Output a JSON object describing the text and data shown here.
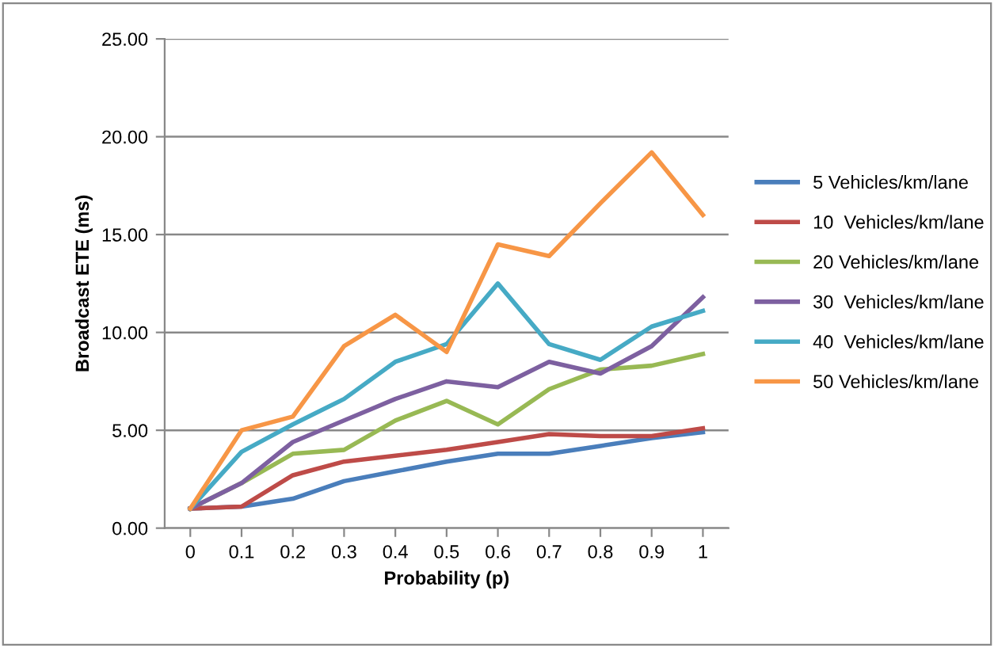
{
  "chart_data": {
    "type": "line",
    "xlabel": "Probability (p)",
    "ylabel": "Broadcast ETE (ms)",
    "categories": [
      "0",
      "0.1",
      "0.2",
      "0.3",
      "0.4",
      "0.5",
      "0.6",
      "0.7",
      "0.8",
      "0.9",
      "1"
    ],
    "ylim": [
      0,
      25
    ],
    "yticks": [
      {
        "value": 0,
        "label": "0.00"
      },
      {
        "value": 5,
        "label": "5.00"
      },
      {
        "value": 10,
        "label": "10.00"
      },
      {
        "value": 15,
        "label": "15.00"
      },
      {
        "value": 20,
        "label": "20.00"
      },
      {
        "value": 25,
        "label": "25.00"
      }
    ],
    "grid": "y",
    "legend": "right",
    "marker": "none",
    "line_style": "solid",
    "series": [
      {
        "name": "5 Vehicles/km/lane",
        "color": "#4a7ebb",
        "values": [
          1,
          1.1,
          1.5,
          2.4,
          2.9,
          3.4,
          3.8,
          3.8,
          4.2,
          4.6,
          4.9
        ]
      },
      {
        "name": "10  Vehicles/km/lane",
        "color": "#be4b48",
        "values": [
          1,
          1.1,
          2.7,
          3.4,
          3.7,
          4.0,
          4.4,
          4.8,
          4.7,
          4.7,
          5.1
        ]
      },
      {
        "name": "20 Vehicles/km/lane",
        "color": "#98b954",
        "values": [
          1,
          2.3,
          3.8,
          4.0,
          5.5,
          6.5,
          5.3,
          7.1,
          8.1,
          8.3,
          8.9
        ]
      },
      {
        "name": "30  Vehicles/km/lane",
        "color": "#7d60a0",
        "values": [
          1,
          2.3,
          4.4,
          5.5,
          6.6,
          7.5,
          7.2,
          8.5,
          7.9,
          9.3,
          11.8
        ]
      },
      {
        "name": "40  Vehicles/km/lane",
        "color": "#46aac5",
        "values": [
          1,
          3.9,
          5.3,
          6.6,
          8.5,
          9.4,
          12.5,
          9.4,
          8.6,
          10.3,
          11.1
        ]
      },
      {
        "name": "50 Vehicles/km/lane",
        "color": "#f79646",
        "values": [
          1,
          5.0,
          5.7,
          9.3,
          10.9,
          9.0,
          14.5,
          13.9,
          16.6,
          19.2,
          16.0
        ]
      }
    ]
  }
}
